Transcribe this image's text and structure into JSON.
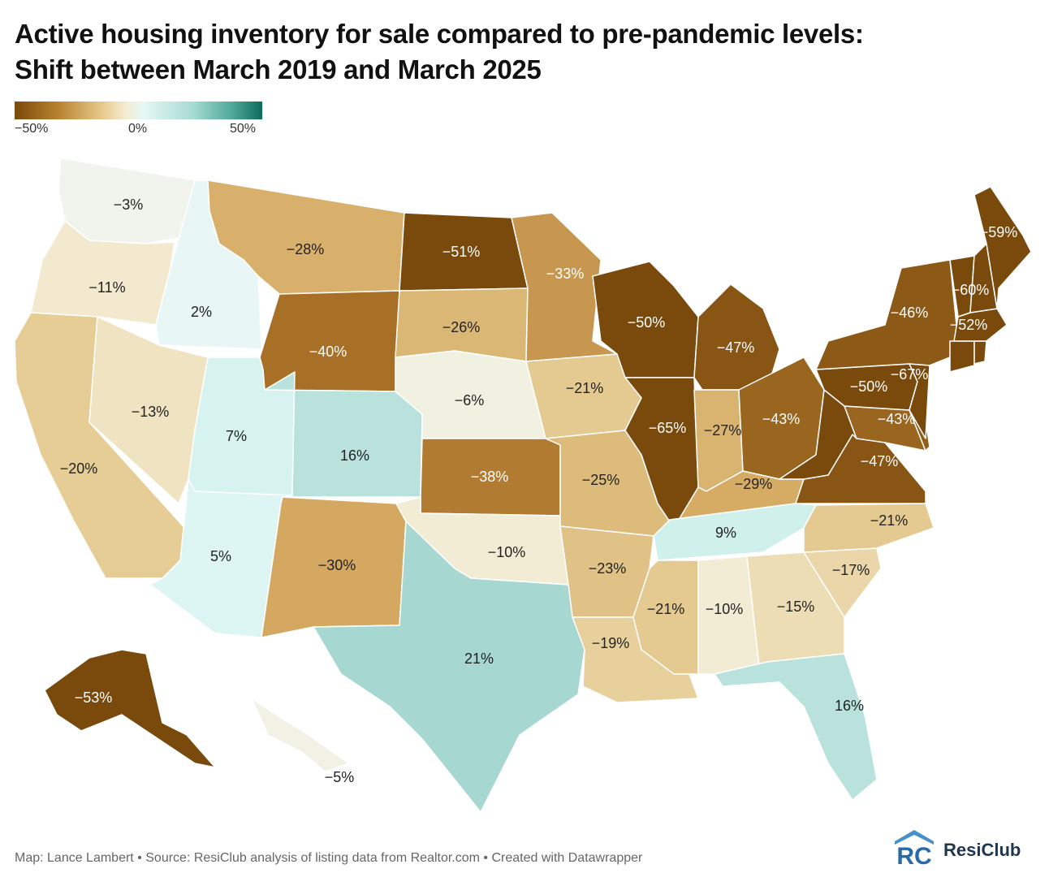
{
  "title": {
    "line1": "Active housing inventory for sale compared to pre-pandemic levels:",
    "line2": "Shift between March 2019 and March 2025"
  },
  "legend": {
    "min_label": "−50%",
    "mid_label": "0%",
    "max_label": "50%",
    "min_value": -50,
    "max_value": 50
  },
  "colors": {
    "neg_strong": "#8a5113",
    "neg_mid": "#c39243",
    "neg_light": "#e6c98a",
    "neutral": "#f4f0df",
    "pos_light": "#def6f3",
    "pos_mid": "#acdad4",
    "pos_strong": "#0c6a5c"
  },
  "states": [
    {
      "code": "WA",
      "value": -3,
      "label": "−3%"
    },
    {
      "code": "OR",
      "value": -11,
      "label": "−11%"
    },
    {
      "code": "CA",
      "value": -20,
      "label": "−20%"
    },
    {
      "code": "ID",
      "value": 2,
      "label": "2%"
    },
    {
      "code": "NV",
      "value": -13,
      "label": "−13%"
    },
    {
      "code": "UT",
      "value": 7,
      "label": "7%"
    },
    {
      "code": "AZ",
      "value": 5,
      "label": "5%"
    },
    {
      "code": "MT",
      "value": -28,
      "label": "−28%"
    },
    {
      "code": "WY",
      "value": -40,
      "label": "−40%"
    },
    {
      "code": "CO",
      "value": 16,
      "label": "16%"
    },
    {
      "code": "NM",
      "value": -30,
      "label": "−30%"
    },
    {
      "code": "ND",
      "value": -51,
      "label": "−51%"
    },
    {
      "code": "SD",
      "value": -26,
      "label": "−26%"
    },
    {
      "code": "NE",
      "value": -6,
      "label": "−6%"
    },
    {
      "code": "KS",
      "value": -38,
      "label": "−38%"
    },
    {
      "code": "OK",
      "value": -10,
      "label": "−10%"
    },
    {
      "code": "TX",
      "value": 21,
      "label": "21%"
    },
    {
      "code": "MN",
      "value": -33,
      "label": "−33%"
    },
    {
      "code": "IA",
      "value": -21,
      "label": "−21%"
    },
    {
      "code": "MO",
      "value": -25,
      "label": "−25%"
    },
    {
      "code": "AR",
      "value": -23,
      "label": "−23%"
    },
    {
      "code": "LA",
      "value": -19,
      "label": "−19%"
    },
    {
      "code": "WI",
      "value": -50,
      "label": "−50%"
    },
    {
      "code": "IL",
      "value": -65,
      "label": "−65%"
    },
    {
      "code": "MI",
      "value": -47,
      "label": "−47%"
    },
    {
      "code": "IN",
      "value": -27,
      "label": "−27%"
    },
    {
      "code": "OH",
      "value": -43,
      "label": "−43%"
    },
    {
      "code": "KY",
      "value": -29,
      "label": "−29%"
    },
    {
      "code": "TN",
      "value": 9,
      "label": "9%"
    },
    {
      "code": "MS",
      "value": -21,
      "label": "−21%"
    },
    {
      "code": "AL",
      "value": -10,
      "label": "−10%"
    },
    {
      "code": "GA",
      "value": -15,
      "label": "−15%"
    },
    {
      "code": "FL",
      "value": 16,
      "label": "16%"
    },
    {
      "code": "SC",
      "value": -17,
      "label": "−17%"
    },
    {
      "code": "NC",
      "value": -21,
      "label": "−21%"
    },
    {
      "code": "VA",
      "value": -47,
      "label": "−47%"
    },
    {
      "code": "WV",
      "value": -50,
      "label": ""
    },
    {
      "code": "MD",
      "value": -43,
      "label": "−43%"
    },
    {
      "code": "DE",
      "value": -45,
      "label": ""
    },
    {
      "code": "PA",
      "value": -50,
      "label": "−50%"
    },
    {
      "code": "NJ",
      "value": -67,
      "label": "−67%"
    },
    {
      "code": "NY",
      "value": -46,
      "label": "−46%"
    },
    {
      "code": "CT",
      "value": -55,
      "label": ""
    },
    {
      "code": "RI",
      "value": -55,
      "label": ""
    },
    {
      "code": "MA",
      "value": -52,
      "label": "−52%"
    },
    {
      "code": "VT",
      "value": -55,
      "label": ""
    },
    {
      "code": "NH",
      "value": -60,
      "label": "−60%"
    },
    {
      "code": "ME",
      "value": -59,
      "label": "−59%"
    },
    {
      "code": "AK",
      "value": -53,
      "label": "−53%"
    },
    {
      "code": "HI",
      "value": -5,
      "label": "−5%"
    }
  ],
  "footer": {
    "source": "Map: Lance Lambert • Source: ResiClub analysis of listing data from Realtor.com • Created with Datawrapper"
  },
  "logo": {
    "mark_text": "RC",
    "name": "ResiClub"
  }
}
